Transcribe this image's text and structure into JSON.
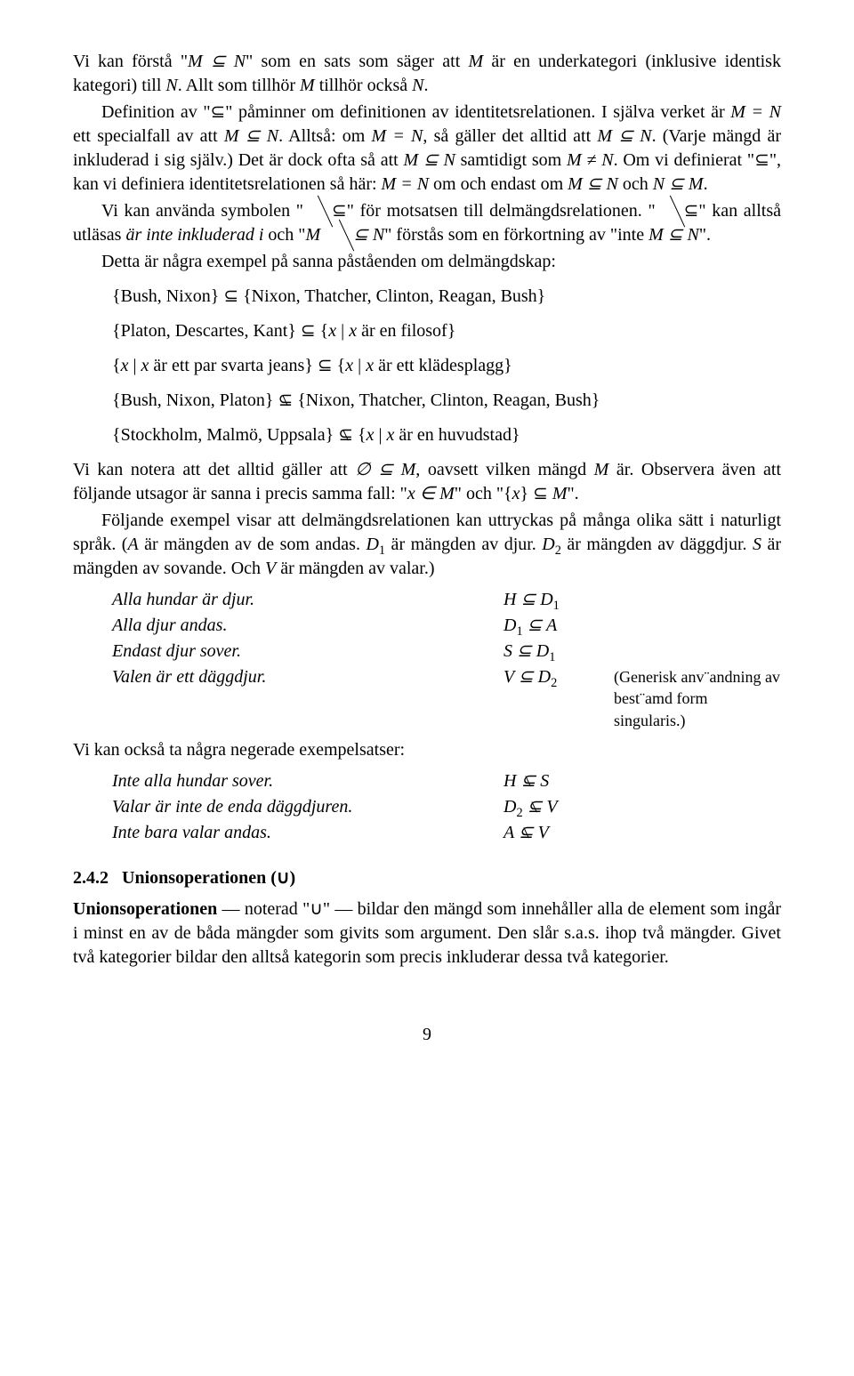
{
  "p1a": "Vi kan förstå \"",
  "p1b": "\" som en sats som säger att ",
  "p1c": " är en underkategori (inklusive identisk kategori) till ",
  "p1d": ". Allt som tillhör ",
  "p1e": " tillhör också ",
  "p1f": ".",
  "M": "M",
  "N": "N",
  "MsubN": "M ⊆ N",
  "p2a": "Definition av \"⊆\" påminner om definitionen av identitetsrelationen. I själva verket är ",
  "p2b": " ett specialfall av att ",
  "p2c": ". Alltså: om ",
  "p2d": ", så gäller det alltid att ",
  "p2e": ". (Varje mängd är inkluderad i sig själv.) Det är dock ofta så att ",
  "p2f": " samtidigt som ",
  "p2g": ". Om vi definierat \"⊆\", kan vi definiera identitetsrelationen så här: ",
  "p2h": " om och endast om ",
  "p2i": " och ",
  "p2j": ".",
  "MeqN": "M = N",
  "MneN": "M ≠ N",
  "NsubM": "N ⊆ M",
  "p3a": "Vi kan använda symbolen \"",
  "p3b": "\" för motsatsen till delmängdsrelationen. \"",
  "p3c": "\" kan alltså utläsas ",
  "p3d": "är inte inkluderad i",
  "p3e": " och \"",
  "p3f": "\" förstås som en förkortning av \"inte ",
  "p3g": "\".",
  "Mnsub": "M ⊆ N",
  "p4": "Detta är några exempel på sanna påståenden om delmängdskap:",
  "ex1": "{Bush, Nixon} ⊆ {Nixon, Thatcher, Clinton, Reagan, Bush}",
  "ex2a": "{Platon, Descartes, Kant} ⊆ {",
  "ex2x": "x",
  "ex2b": " | ",
  "ex2c": " är en filosof}",
  "ex3a": "{",
  "ex3b": " är ett par svarta jeans} ⊆ {",
  "ex3c": " är ett klädesplagg}",
  "ex4a": "{Bush, Nixon, Platon} ",
  "ex4b": " {Nixon, Thatcher, Clinton, Reagan, Bush}",
  "ex5a": "{Stockholm, Malmö, Uppsala} ",
  "ex5b": " {",
  "ex5c": " är en huvudstad}",
  "p5a": "Vi kan notera att det alltid gäller att ",
  "p5emp": "∅ ⊆ ",
  "p5b": ", oavsett vilken mängd ",
  "p5c": " är. Observera även att följande utsagor är sanna i precis samma fall: \"",
  "p5d": "x ∈ M",
  "p5e": "\" och \"{",
  "p5f": "x",
  "p5g": "} ⊆ ",
  "p5h": "\".",
  "p6a": "Följande exempel visar att delmängdsrelationen kan uttryckas på många olika sätt i naturligt språk. (",
  "p6b": " är mängden av de som andas. ",
  "p6c": " är mängden av djur. ",
  "p6d": " är mängden av däggdjur. ",
  "p6e": " är mängden av sovande. Och ",
  "p6f": " är mängden av valar.)",
  "A": "A",
  "D1": "D",
  "D2": "D",
  "S": "S",
  "V": "V",
  "s1t": "Alla hundar är djur.",
  "s1s_a": "H ⊆ D",
  "s1s_b": "1",
  "s2t": "Alla djur andas.",
  "s2s_a": "D",
  "s2s_b": "1",
  "s2s_c": " ⊆ A",
  "s3t": "Endast djur sover.",
  "s3s_a": "S ⊆ D",
  "s3s_b": "1",
  "s4t": "Valen är ett däggdjur.",
  "s4s_a": "V ⊆ D",
  "s4s_b": "2",
  "note_a": "(Generisk anv¨andning av",
  "note_b": "best¨amd form singularis.)",
  "p7": "Vi kan också ta några negerade exempelsatser:",
  "n1t": "Inte alla hundar sover.",
  "n1a": "H ",
  "n1b": " S",
  "n2t": "Valar är inte de enda däggdjuren.",
  "n2a": "D",
  "n2sub": "2",
  "n2b": " ",
  "n2c": " V",
  "n3t": "Inte bara valar andas.",
  "n3a": "A ",
  "n3b": " V",
  "secnum": "2.4.2",
  "sectitle": "Unionsoperationen (∪)",
  "p8a": "Unionsoperationen",
  "p8b": " — noterad \"∪\" — bildar den mängd som innehåller alla de element som ingår i minst en av de båda mängder som givits som argument. Den slår s.a.s. ihop två mängder. Givet två kategorier bildar den alltså kategorin som precis inkluderar dessa två kategorier.",
  "pagenum": "9"
}
